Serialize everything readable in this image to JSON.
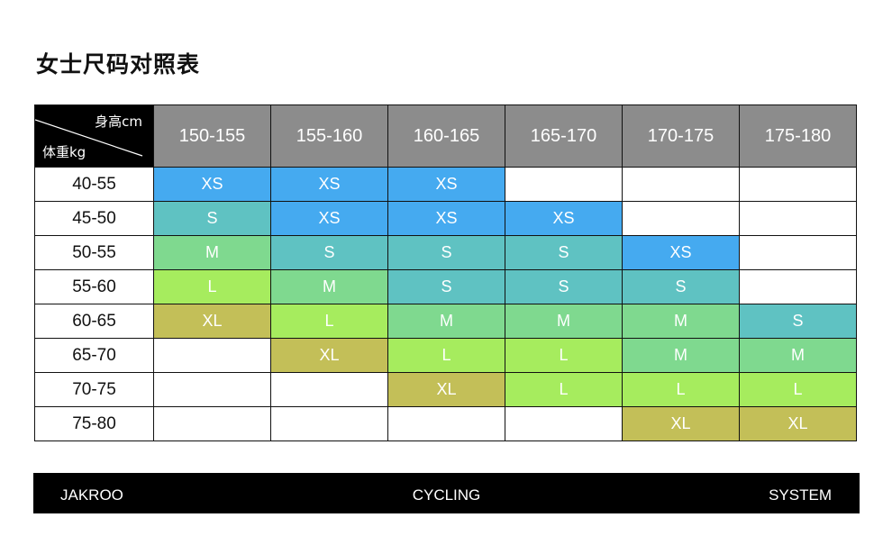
{
  "title": "女士尺码对照表",
  "corner": {
    "height_label": "身高cm",
    "weight_label": "体重kg"
  },
  "heights": [
    "150-155",
    "155-160",
    "160-165",
    "165-170",
    "170-175",
    "175-180"
  ],
  "colors": {
    "XS": "#45aaf0",
    "S": "#5fc2c2",
    "M": "#7fd98f",
    "L": "#a6ec5e",
    "XL": "#c3bf58",
    "empty": "#ffffff",
    "header_bg": "#8c8c8c",
    "corner_bg": "#000000"
  },
  "rows": [
    {
      "weight": "40-55",
      "sizes": [
        "XS",
        "XS",
        "XS",
        "",
        "",
        ""
      ]
    },
    {
      "weight": "45-50",
      "sizes": [
        "S",
        "XS",
        "XS",
        "XS",
        "",
        ""
      ]
    },
    {
      "weight": "50-55",
      "sizes": [
        "M",
        "S",
        "S",
        "S",
        "XS",
        ""
      ]
    },
    {
      "weight": "55-60",
      "sizes": [
        "L",
        "M",
        "S",
        "S",
        "S",
        ""
      ]
    },
    {
      "weight": "60-65",
      "sizes": [
        "XL",
        "L",
        "M",
        "M",
        "M",
        "S"
      ]
    },
    {
      "weight": "65-70",
      "sizes": [
        "",
        "XL",
        "L",
        "L",
        "M",
        "M"
      ]
    },
    {
      "weight": "70-75",
      "sizes": [
        "",
        "",
        "XL",
        "L",
        "L",
        "L"
      ]
    },
    {
      "weight": "75-80",
      "sizes": [
        "",
        "",
        "",
        "",
        "XL",
        "XL"
      ]
    }
  ],
  "footer": {
    "left": "JAKROO",
    "center": "CYCLING",
    "right": "SYSTEM"
  }
}
